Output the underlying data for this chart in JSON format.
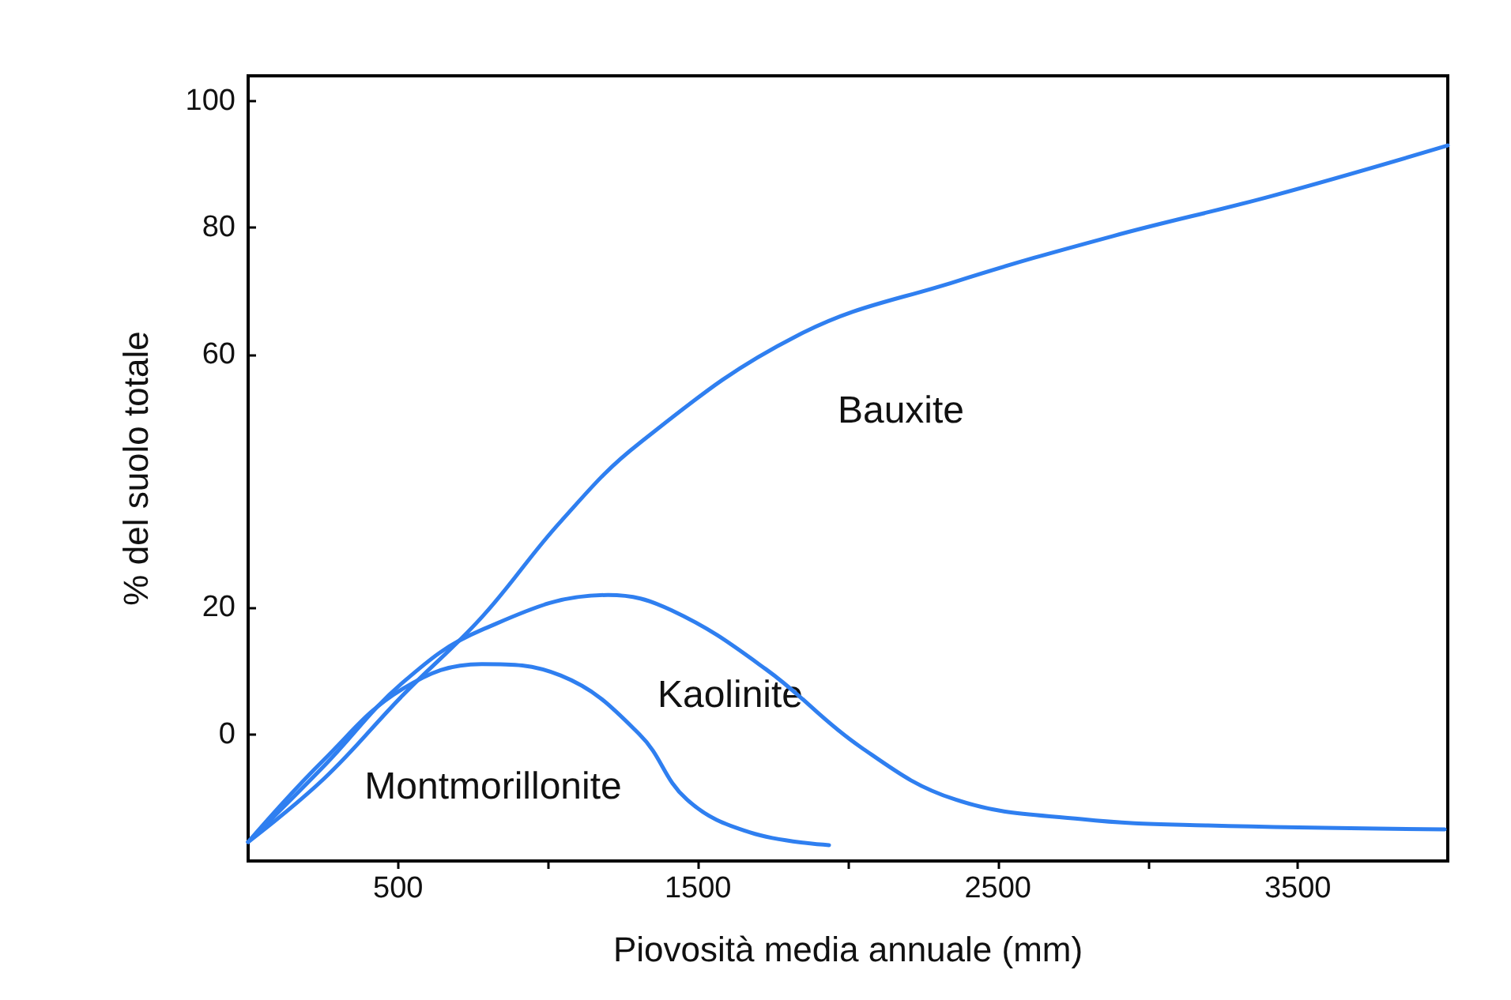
{
  "chart_data": {
    "type": "line",
    "xlabel": "Piovosità media annuale (mm)",
    "ylabel": "% del suolo totale",
    "xlim": [
      0,
      4000
    ],
    "xticks": [
      500,
      {
        "value": 1000,
        "label": null
      },
      1500,
      {
        "value": 2000,
        "label": null
      },
      2500,
      {
        "value": 3000,
        "label": null
      },
      3500
    ],
    "ylim": [
      -20,
      104
    ],
    "yticks": [
      0,
      20,
      60,
      80,
      100
    ],
    "grid": false,
    "marker": "none",
    "line_style": "solid",
    "series": [
      {
        "color": "#2f7ff0",
        "x": [
          0,
          253,
          516,
          779,
          1042,
          1305,
          1832,
          2358,
          2884,
          3411,
          4000
        ],
        "values": [
          -17,
          -7,
          6.2,
          18.5,
          33.6,
          46,
          63,
          71.5,
          78.7,
          85,
          93
        ]
      },
      {
        "color": "#2f7ff0",
        "x": [
          0,
          253,
          516,
          779,
          1200,
          1411,
          1726,
          2042,
          2358,
          2779,
          3200,
          3990
        ],
        "values": [
          -17,
          -5,
          8.2,
          16.5,
          22,
          19.6,
          10.3,
          -2,
          -10.3,
          -13.4,
          -14.4,
          -15
        ]
      },
      {
        "color": "#2f7ff0",
        "x": [
          0,
          253,
          516,
          779,
          1042,
          1305,
          1463,
          1674,
          1937
        ],
        "values": [
          -17,
          -4,
          7.2,
          11.1,
          9.3,
          0,
          -10.3,
          -15.5,
          -17.5
        ]
      }
    ],
    "annotations": [
      "Bauxite",
      "Kaolinite",
      "Montmorillonite"
    ]
  }
}
